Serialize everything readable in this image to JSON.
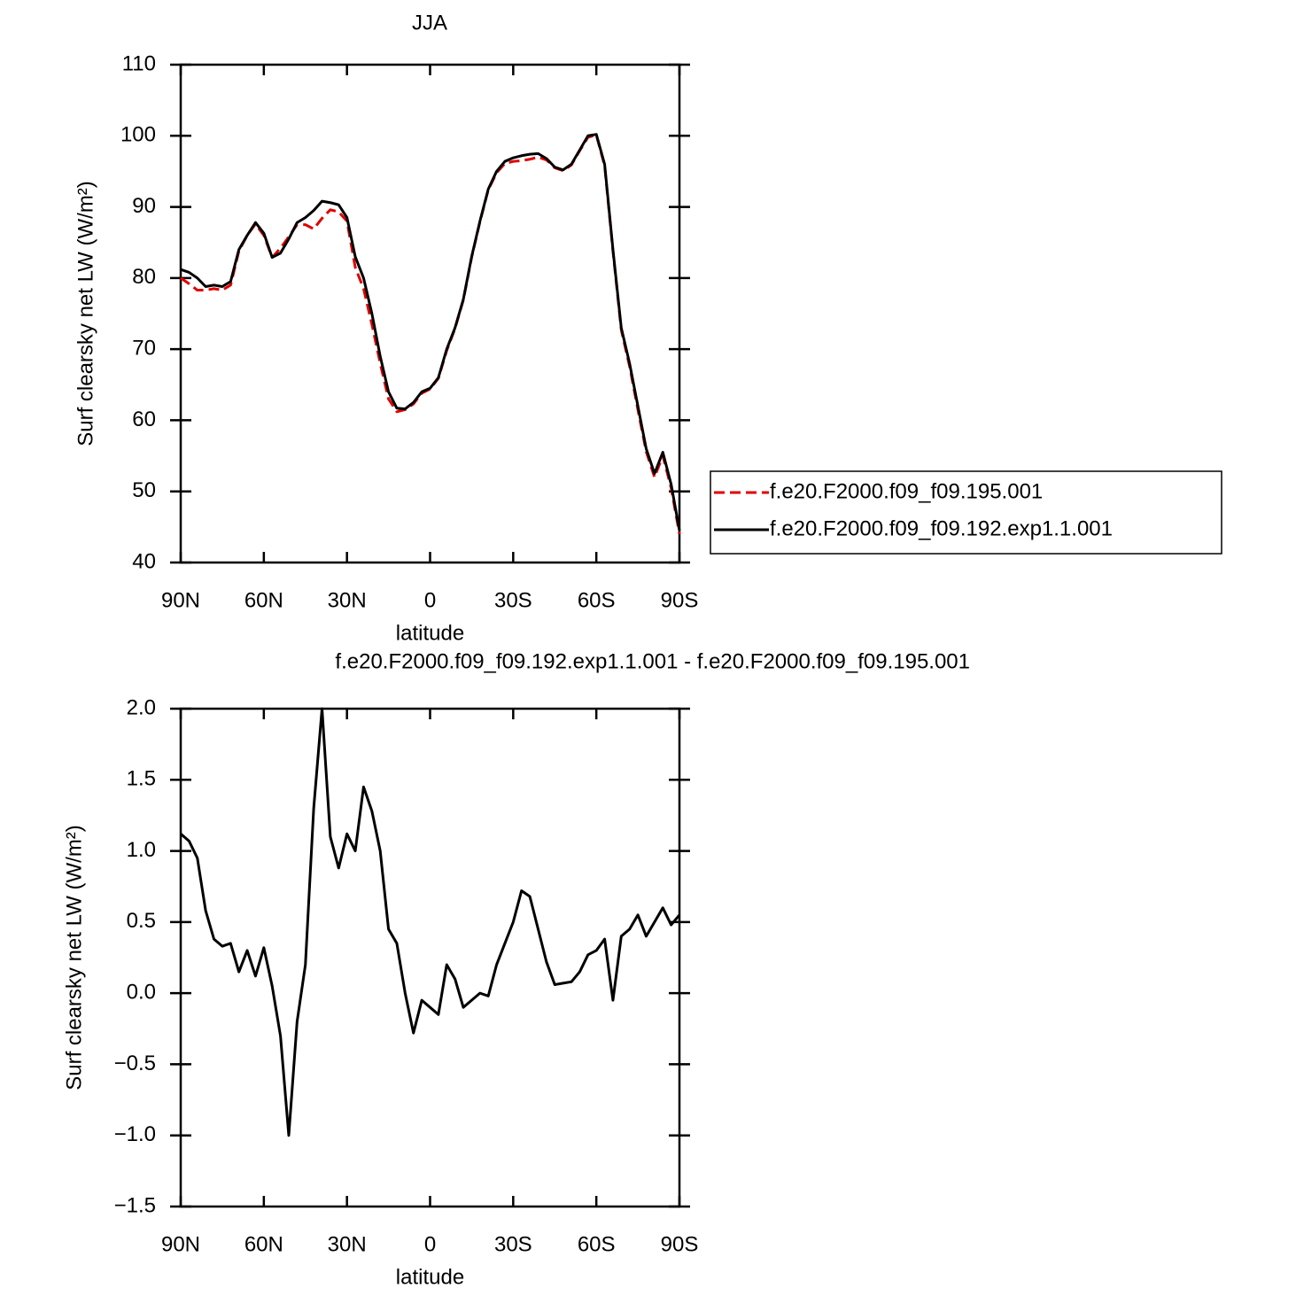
{
  "chart_data": [
    {
      "type": "line",
      "title": "JJA",
      "xlabel": "latitude",
      "ylabel": "Surf clearsky net LW (W/m²)",
      "x": [
        90,
        87,
        84,
        81,
        78,
        75,
        72,
        69,
        66,
        63,
        60,
        57,
        54,
        51,
        48,
        45,
        42,
        39,
        36,
        33,
        30,
        27,
        24,
        21,
        18,
        15,
        12,
        9,
        6,
        3,
        0,
        -3,
        -6,
        -9,
        -12,
        -15,
        -18,
        -21,
        -24,
        -27,
        -30,
        -33,
        -36,
        -39,
        -42,
        -45,
        -48,
        -51,
        -54,
        -57,
        -60,
        -63,
        -66,
        -69,
        -72,
        -75,
        -78,
        -81,
        -84,
        -87,
        -90
      ],
      "series": [
        {
          "name": "f.e20.F2000.f09_f09.195.001",
          "color": "#e00000",
          "dash": true,
          "values": [
            80,
            79.2,
            78.3,
            78.3,
            78.5,
            78.3,
            79,
            83.8,
            86,
            87.6,
            86,
            82.9,
            84.2,
            85.8,
            87.5,
            87.5,
            86.9,
            88.4,
            89.6,
            89.3,
            88,
            81.5,
            78.5,
            73.5,
            68,
            63,
            61.2,
            61.5,
            62.3,
            63.8,
            64.4,
            65.9,
            69.8,
            72.9,
            76.9,
            82.9,
            87.9,
            92.4,
            94.8,
            96.1,
            96.4,
            96.5,
            96.7,
            97,
            96.6,
            95.5,
            95.1,
            95.9,
            97.9,
            99.8,
            100.1,
            95.8,
            83.8,
            72.7,
            67.6,
            61.5,
            55.6,
            52,
            55,
            50.5,
            44
          ]
        },
        {
          "name": "f.e20.F2000.f09_f09.192.exp1.1.001",
          "color": "#000000",
          "dash": false,
          "values": [
            81.2,
            80.8,
            80,
            78.8,
            79,
            78.8,
            79.5,
            84,
            86,
            87.8,
            86.3,
            82.9,
            83.5,
            85.5,
            87.8,
            88.5,
            89.5,
            90.8,
            90.6,
            90.3,
            88.5,
            83,
            80,
            75,
            69,
            64,
            61.7,
            61.6,
            62.5,
            64,
            64.5,
            66,
            70,
            73,
            77,
            83,
            88,
            92.5,
            95,
            96.4,
            96.9,
            97.2,
            97.4,
            97.5,
            96.8,
            95.6,
            95.2,
            96,
            98,
            100,
            100.2,
            96,
            84,
            73,
            68,
            62,
            56,
            52.5,
            55.5,
            51,
            44.5
          ]
        }
      ],
      "xlim": [
        90,
        -90
      ],
      "xticks": [
        {
          "value": 90,
          "label": "90N"
        },
        {
          "value": 60,
          "label": "60N"
        },
        {
          "value": 30,
          "label": "30N"
        },
        0,
        {
          "value": -30,
          "label": "30S"
        },
        {
          "value": -60,
          "label": "60S"
        },
        {
          "value": -90,
          "label": "90S"
        }
      ],
      "ylim": [
        40,
        110
      ],
      "yticks": [
        40,
        50,
        60,
        70,
        80,
        90,
        100,
        110
      ],
      "legend": "right"
    },
    {
      "type": "line",
      "title": "f.e20.F2000.f09_f09.192.exp1.1.001 - f.e20.F2000.f09_f09.195.001",
      "xlabel": "latitude",
      "ylabel": "Surf clearsky net LW (W/m²)",
      "x": [
        90,
        87,
        84,
        81,
        78,
        75,
        72,
        69,
        66,
        63,
        60,
        57,
        54,
        51,
        48,
        45,
        42,
        39,
        36,
        33,
        30,
        27,
        24,
        21,
        18,
        15,
        12,
        9,
        6,
        3,
        0,
        -3,
        -6,
        -9,
        -12,
        -15,
        -18,
        -21,
        -24,
        -27,
        -30,
        -33,
        -36,
        -39,
        -42,
        -45,
        -48,
        -51,
        -54,
        -57,
        -60,
        -63,
        -66,
        -69,
        -72,
        -75,
        -78,
        -81,
        -84,
        -87,
        -90
      ],
      "series": [
        {
          "color": "#000000",
          "dash": false,
          "values": [
            1.12,
            1.07,
            0.95,
            0.58,
            0.38,
            0.33,
            0.35,
            0.15,
            0.3,
            0.12,
            0.32,
            0.05,
            -0.3,
            -1.0,
            -0.2,
            0.2,
            1.3,
            2.0,
            1.1,
            0.88,
            1.12,
            1.0,
            1.45,
            1.28,
            1.0,
            0.45,
            0.35,
            0.0,
            -0.28,
            -0.05,
            -0.1,
            -0.15,
            0.2,
            0.1,
            -0.1,
            -0.05,
            0.0,
            -0.02,
            0.2,
            0.35,
            0.5,
            0.72,
            0.68,
            0.45,
            0.22,
            0.06,
            0.07,
            0.08,
            0.15,
            0.27,
            0.3,
            0.38,
            -0.05,
            0.4,
            0.45,
            0.55,
            0.4,
            0.5,
            0.6,
            0.48,
            0.55
          ]
        }
      ],
      "xlim": [
        90,
        -90
      ],
      "xticks": [
        {
          "value": 90,
          "label": "90N"
        },
        {
          "value": 60,
          "label": "60N"
        },
        {
          "value": 30,
          "label": "30N"
        },
        0,
        {
          "value": -30,
          "label": "30S"
        },
        {
          "value": -60,
          "label": "60S"
        },
        {
          "value": -90,
          "label": "90S"
        }
      ],
      "ylim": [
        -1.5,
        2.0
      ],
      "yticks": [
        {
          "value": -1.5,
          "label": "−1.5"
        },
        {
          "value": -1.0,
          "label": "−1.0"
        },
        {
          "value": -0.5,
          "label": "−0.5"
        },
        {
          "value": 0,
          "label": "0.0"
        },
        0.5,
        {
          "value": 1.0,
          "label": "1.0"
        },
        1.5,
        {
          "value": 2.0,
          "label": "2.0"
        }
      ]
    }
  ]
}
